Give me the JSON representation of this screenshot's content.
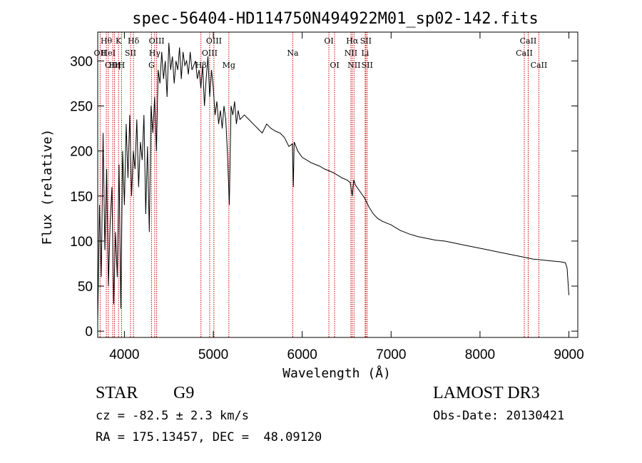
{
  "chart_data": {
    "type": "line",
    "title": "spec-56404-HD114750N494922M01_sp02-142.fits",
    "xlabel": "Wavelength (Å)",
    "ylabel": "Flux (relative)",
    "xlim": [
      3700,
      9100
    ],
    "ylim": [
      -7,
      332
    ],
    "x_ticks": [
      4000,
      5000,
      6000,
      7000,
      8000,
      9000
    ],
    "y_ticks": [
      0,
      50,
      100,
      150,
      200,
      250,
      300
    ],
    "grid": false,
    "series": [
      {
        "x": [
          3700,
          3720,
          3740,
          3760,
          3780,
          3800,
          3820,
          3840,
          3860,
          3880,
          3900,
          3920,
          3940,
          3960,
          3980,
          4000,
          4020,
          4040,
          4060,
          4080,
          4100,
          4120,
          4140,
          4160,
          4180,
          4200,
          4220,
          4240,
          4260,
          4280,
          4300,
          4320,
          4340,
          4360,
          4380,
          4400,
          4420,
          4440,
          4460,
          4480,
          4500,
          4520,
          4540,
          4560,
          4580,
          4600,
          4620,
          4640,
          4660,
          4680,
          4700,
          4720,
          4740,
          4760,
          4780,
          4800,
          4820,
          4840,
          4860,
          4880,
          4900,
          4920,
          4940,
          4960,
          4980,
          5000,
          5020,
          5040,
          5060,
          5080,
          5100,
          5120,
          5140,
          5160,
          5180,
          5200,
          5220,
          5240,
          5260,
          5280,
          5300,
          5350,
          5400,
          5450,
          5500,
          5550,
          5600,
          5650,
          5700,
          5750,
          5800,
          5850,
          5890,
          5900,
          5910,
          5950,
          6000,
          6050,
          6100,
          6150,
          6200,
          6250,
          6300,
          6350,
          6400,
          6450,
          6500,
          6540,
          6563,
          6580,
          6600,
          6650,
          6700,
          6750,
          6800,
          6850,
          6900,
          6950,
          7000,
          7100,
          7200,
          7300,
          7400,
          7500,
          7600,
          7700,
          7800,
          7900,
          8000,
          8100,
          8200,
          8300,
          8400,
          8500,
          8600,
          8700,
          8800,
          8900,
          8960,
          8980,
          9000
        ],
        "values": [
          10,
          140,
          60,
          220,
          90,
          180,
          50,
          120,
          160,
          30,
          110,
          60,
          185,
          25,
          200,
          140,
          230,
          170,
          240,
          150,
          200,
          180,
          235,
          160,
          210,
          190,
          240,
          130,
          205,
          110,
          250,
          220,
          260,
          200,
          290,
          275,
          310,
          280,
          300,
          260,
          320,
          290,
          305,
          275,
          300,
          290,
          315,
          280,
          310,
          295,
          300,
          285,
          310,
          290,
          295,
          300,
          280,
          290,
          270,
          295,
          250,
          280,
          305,
          260,
          290,
          270,
          240,
          255,
          230,
          245,
          225,
          250,
          235,
          195,
          140,
          250,
          240,
          255,
          230,
          245,
          235,
          240,
          235,
          230,
          225,
          220,
          230,
          225,
          222,
          220,
          215,
          205,
          208,
          160,
          210,
          200,
          193,
          190,
          187,
          185,
          183,
          180,
          178,
          176,
          173,
          170,
          168,
          165,
          150,
          168,
          162,
          155,
          148,
          138,
          130,
          125,
          122,
          120,
          118,
          112,
          108,
          105,
          103,
          101,
          100,
          98,
          96,
          94,
          92,
          90,
          88,
          86,
          84,
          82,
          80,
          79,
          78,
          77,
          76,
          70,
          40
        ]
      }
    ],
    "lines": [
      {
        "label": "OII",
        "x": 3727,
        "row": 1
      },
      {
        "label": "Hθ",
        "x": 3797,
        "row": 0
      },
      {
        "label": "HeI",
        "x": 3819,
        "row": 1
      },
      {
        "label": "OIII",
        "x": 3869,
        "row": 2
      },
      {
        "label": "K",
        "x": 3934,
        "row": 0
      },
      {
        "label": "SII",
        "x": 4069,
        "row": 1
      },
      {
        "label": "Hη",
        "x": 3889,
        "row": 2
      },
      {
        "label": "H",
        "x": 3968,
        "row": 2
      },
      {
        "label": "Hδ",
        "x": 4102,
        "row": 0
      },
      {
        "label": "OIII",
        "x": 4363,
        "row": 0
      },
      {
        "label": "Hγ",
        "x": 4341,
        "row": 1
      },
      {
        "label": "G",
        "x": 4305,
        "row": 2
      },
      {
        "label": "OIII",
        "x": 5007,
        "row": 0
      },
      {
        "label": "OIII",
        "x": 4959,
        "row": 1
      },
      {
        "label": "Hβ",
        "x": 4861,
        "row": 2
      },
      {
        "label": "Mg",
        "x": 5175,
        "row": 2
      },
      {
        "label": "Na",
        "x": 5894,
        "row": 1
      },
      {
        "label": "OI",
        "x": 6300,
        "row": 0
      },
      {
        "label": "OI",
        "x": 6364,
        "row": 2
      },
      {
        "label": "Hα",
        "x": 6563,
        "row": 0
      },
      {
        "label": "NII",
        "x": 6548,
        "row": 1
      },
      {
        "label": "NII",
        "x": 6583,
        "row": 2
      },
      {
        "label": "SII",
        "x": 6716,
        "row": 0
      },
      {
        "label": "Li",
        "x": 6708,
        "row": 1
      },
      {
        "label": "SII",
        "x": 6731,
        "row": 2
      },
      {
        "label": "CaII",
        "x": 8542,
        "row": 0
      },
      {
        "label": "CaII",
        "x": 8498,
        "row": 1
      },
      {
        "label": "CaII",
        "x": 8662,
        "row": 2
      }
    ]
  },
  "info": {
    "class_label": "STAR",
    "subclass": "G9",
    "survey": "LAMOST DR3",
    "redshift": "cz = -82.5 ± 2.3 km/s",
    "obs_date": "Obs-Date: 20130421",
    "coords": "RA = 175.13457, DEC =  48.09120"
  },
  "colors": {
    "spectrum": "#000000",
    "line_markers": "#cc0000",
    "axes": "#000000"
  }
}
